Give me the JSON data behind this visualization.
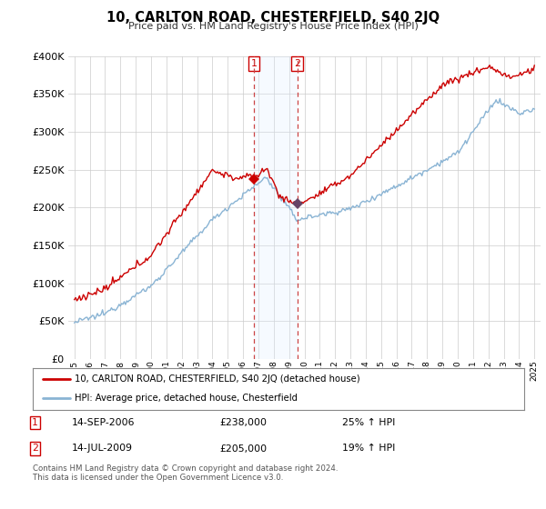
{
  "title": "10, CARLTON ROAD, CHESTERFIELD, S40 2JQ",
  "subtitle": "Price paid vs. HM Land Registry's House Price Index (HPI)",
  "sale1_date": "14-SEP-2006",
  "sale1_price": 238000,
  "sale1_hpi": "25% ↑ HPI",
  "sale2_date": "14-JUL-2009",
  "sale2_price": 205000,
  "sale2_hpi": "19% ↑ HPI",
  "legend_line1": "10, CARLTON ROAD, CHESTERFIELD, S40 2JQ (detached house)",
  "legend_line2": "HPI: Average price, detached house, Chesterfield",
  "footer": "Contains HM Land Registry data © Crown copyright and database right 2024.\nThis data is licensed under the Open Government Licence v3.0.",
  "line_color_red": "#cc0000",
  "line_color_blue": "#8ab4d4",
  "shade_color": "#ddeeff",
  "background_color": "#ffffff",
  "grid_color": "#cccccc",
  "ylim": [
    0,
    400000
  ],
  "yticks": [
    0,
    50000,
    100000,
    150000,
    200000,
    250000,
    300000,
    350000,
    400000
  ],
  "sale1_x": 2006.71,
  "sale2_x": 2009.54,
  "xmin": 1995,
  "xmax": 2025
}
